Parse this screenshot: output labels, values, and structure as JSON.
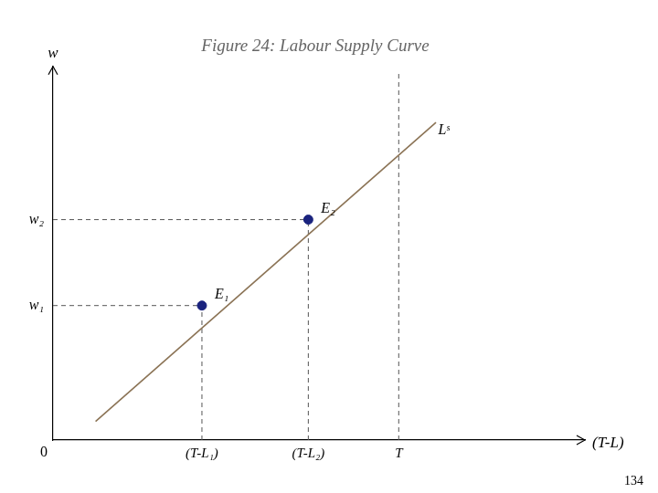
{
  "chart_data": {
    "type": "line",
    "title": "Figure 24: Labour Supply Curve",
    "xlabel": "(T-L)",
    "ylabel": "w",
    "xlim": [
      0,
      10
    ],
    "ylim": [
      0,
      10
    ],
    "grid": false,
    "tick_labels": false,
    "series": [
      {
        "type": "line",
        "color": "#8B7355",
        "x": [
          0.8,
          7.2
        ],
        "values": [
          0.5,
          8.5
        ]
      },
      {
        "type": "line",
        "line_style": "dashed",
        "color": "#555555",
        "x": [
          0,
          2.8
        ],
        "values": [
          3.6,
          3.6
        ]
      },
      {
        "type": "line",
        "line_style": "dashed",
        "color": "#555555",
        "x": [
          2.8,
          2.8
        ],
        "values": [
          0,
          3.6
        ]
      },
      {
        "type": "line",
        "line_style": "dashed",
        "color": "#555555",
        "x": [
          0,
          4.8
        ],
        "values": [
          5.9,
          5.9
        ]
      },
      {
        "type": "line",
        "line_style": "dashed",
        "color": "#555555",
        "x": [
          4.8,
          4.8
        ],
        "values": [
          0,
          5.9
        ]
      },
      {
        "type": "line",
        "line_style": "dashed",
        "color": "#555555",
        "x": [
          6.5,
          6.5
        ],
        "values": [
          0,
          9.8
        ]
      },
      {
        "type": "scatter",
        "marker": "circle",
        "color": "#1a237e",
        "x": [
          2.8,
          4.8
        ],
        "values": [
          3.6,
          5.9
        ]
      }
    ],
    "annotations": [
      {
        "text": "Lˢ",
        "x": 7.0,
        "y": 8.0
      },
      {
        "text": "E₁",
        "x": 2.8,
        "y": 3.6
      },
      {
        "text": "E₂",
        "x": 4.8,
        "y": 5.9
      },
      {
        "text": "0",
        "x": 0,
        "y": 0
      },
      {
        "text": "w₁",
        "x": 0,
        "y": 3.6
      },
      {
        "text": "w₂",
        "x": 0,
        "y": 5.9
      },
      {
        "text": "(T-L₁)",
        "x": 2.8,
        "y": 0
      },
      {
        "text": "(T-L₂)",
        "x": 4.8,
        "y": 0
      },
      {
        "text": "T",
        "x": 6.5,
        "y": 0
      },
      {
        "text": "134"
      }
    ]
  }
}
